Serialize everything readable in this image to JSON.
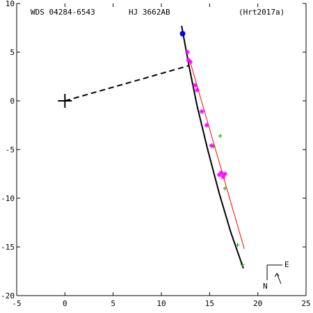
{
  "header": {
    "wds_id": "WDS 04284-6543",
    "pair_name": "HJ 3662AB",
    "reference": "(Hrt2017a)"
  },
  "compass": {
    "east_label": "E",
    "north_label": "N"
  },
  "colors": {
    "orbit": "#000000",
    "linear_fit": "#ff0000",
    "micrometer": "#00a000",
    "speckle": "#ff00ff",
    "hipparcos": "#0000ff",
    "origin": "#000000"
  },
  "chart_data": {
    "type": "scatter",
    "xlim": [
      -5,
      25
    ],
    "ylim": [
      -20,
      10
    ],
    "y_inverted": true,
    "x_ticks": [
      -5,
      0,
      5,
      10,
      15,
      20,
      25
    ],
    "y_ticks": [
      10,
      5,
      0,
      -5,
      -10,
      -15,
      -20
    ],
    "x_tick_labels": [
      "-5",
      "0",
      "5",
      "10",
      "15",
      "20",
      "25"
    ],
    "y_tick_labels": [
      "10",
      "5",
      "0",
      "-5",
      "-10",
      "-15",
      "-20"
    ],
    "primary": [
      0,
      0
    ],
    "orbit_line": [
      [
        12.1,
        7.7
      ],
      [
        12.9,
        3.4
      ],
      [
        13.7,
        -0.5
      ],
      [
        14.8,
        -5.0
      ],
      [
        16.0,
        -9.5
      ],
      [
        17.2,
        -13.5
      ],
      [
        18.5,
        -17.2
      ]
    ],
    "linear_fit": [
      [
        12.9,
        4.3
      ],
      [
        18.6,
        -15.2
      ]
    ],
    "periastron_connector": [
      [
        0,
        0
      ],
      [
        12.8,
        3.6
      ]
    ],
    "micrometer_points": [
      [
        15.4,
        -4.7
      ],
      [
        16.1,
        -3.6
      ],
      [
        16.6,
        -9.0
      ],
      [
        17.9,
        -14.8
      ],
      [
        18.4,
        -16.8
      ]
    ],
    "speckle_points": [
      [
        12.7,
        5.0
      ],
      [
        12.8,
        4.2
      ],
      [
        13.0,
        4.0
      ],
      [
        13.5,
        1.6
      ],
      [
        13.7,
        1.1
      ],
      [
        14.2,
        -1.1
      ],
      [
        14.7,
        -2.5
      ],
      [
        15.2,
        -4.6
      ],
      [
        16.0,
        -7.6
      ],
      [
        16.2,
        -7.4
      ],
      [
        16.6,
        -7.5
      ],
      [
        16.4,
        -7.8
      ]
    ],
    "hipparcos_points": [
      [
        12.2,
        6.9
      ]
    ]
  }
}
